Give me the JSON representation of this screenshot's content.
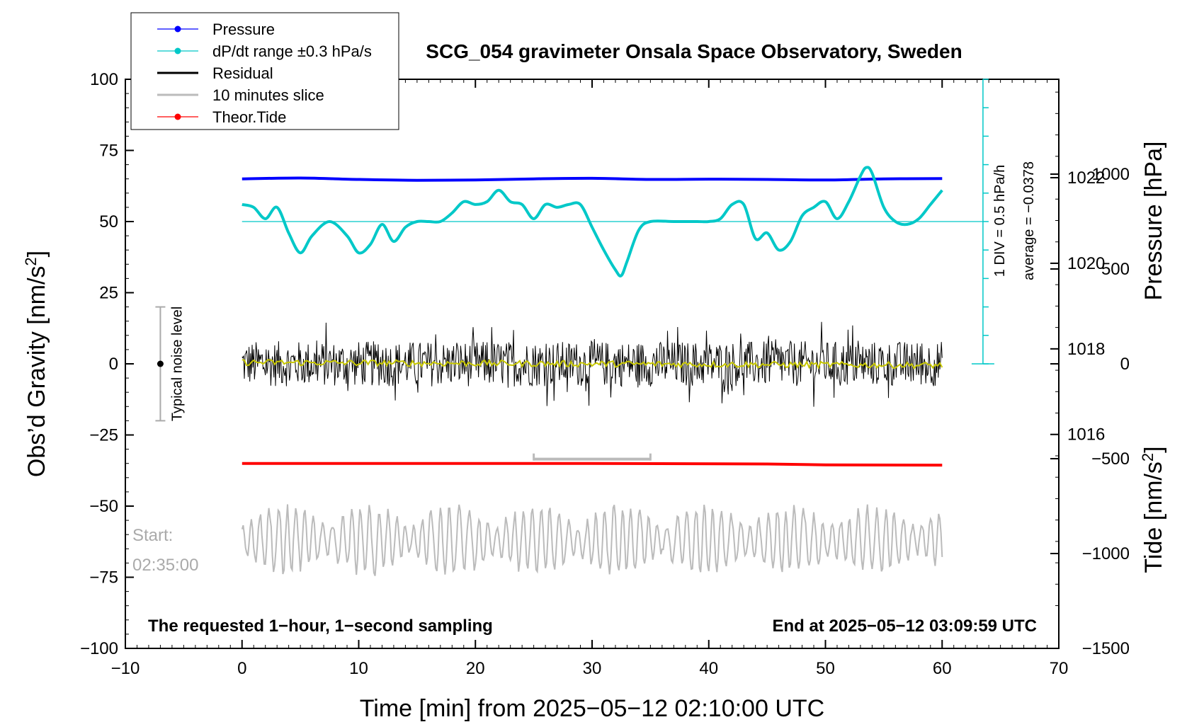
{
  "chart_data": {
    "type": "line",
    "title": "SCG_054 gravimeter Onsala Space Observatory, Sweden",
    "xlabel": "Time [min] from 2025−05−12 02:10:00 UTC",
    "ylabel_left_base": "Obs’d Gravity [nm/s",
    "ylabel_left_sup": "2",
    "ylabel_left_end": "]",
    "ylabel_pressure": "Pressure [hPa]",
    "ylabel_tide_base": "Tide [nm/s",
    "ylabel_tide_sup": "2",
    "ylabel_tide_end": "]",
    "xlim": [
      -10,
      70
    ],
    "ylim": [
      -100,
      100
    ],
    "x_ticks": [
      "−10",
      "0",
      "10",
      "20",
      "30",
      "40",
      "50",
      "60",
      "70"
    ],
    "y_ticks": [
      "−100",
      "−75",
      "−50",
      "−25",
      "0",
      "25",
      "50",
      "75",
      "100"
    ],
    "pressure_ticks": [
      "1016",
      "1018",
      "1020",
      "1022"
    ],
    "pressure_range": [
      1011,
      1024.3
    ],
    "tide_ticks": [
      "1000",
      "500",
      "0",
      "−500",
      "−1000",
      "−1500"
    ],
    "tide_range": [
      -1500,
      1500
    ],
    "legend": [
      {
        "label": "Pressure",
        "color": "#0000ff",
        "marker": true
      },
      {
        "label": "dP/dt range ±0.3 hPa/s",
        "color": "#00c8c8",
        "marker": true
      },
      {
        "label": "Residual",
        "color": "#000000",
        "marker": false
      },
      {
        "label": "10 minutes slice",
        "color": "#bbbbbb",
        "marker": false
      },
      {
        "label": "Theor.Tide",
        "color": "#ff0000",
        "marker": true
      }
    ],
    "annotations": {
      "noise_label": "Typical noise level",
      "noise_range": [
        -20,
        20
      ],
      "noise_x": -7,
      "div_note": "1 DIV = 0.5 hPa/h",
      "average_note": "average = −0.0378",
      "bottom_left": "The requested 1−hour, 1−second sampling",
      "bottom_right": "End at 2025−05−12 03:09:59 UTC",
      "start_label": "Start:",
      "start_time": "02:35:00",
      "slice_range": [
        25,
        35
      ],
      "slice_y": -33.5
    },
    "series": [
      {
        "name": "Pressure",
        "color": "#0000ff",
        "x": [
          0,
          5,
          10,
          15,
          20,
          25,
          30,
          35,
          40,
          45,
          50,
          55,
          60
        ],
        "values": [
          65,
          65.3,
          64.8,
          64.5,
          64.6,
          65,
          65.2,
          64.8,
          64.9,
          64.8,
          64.6,
          65,
          65.1
        ]
      },
      {
        "name": "dP/dt range ±0.3 hPa/s",
        "color": "#00c8c8",
        "x": [
          0,
          1,
          2,
          3,
          4,
          5,
          6,
          7.5,
          9,
          10,
          11,
          12,
          13,
          14,
          15,
          16,
          17,
          18,
          19,
          20,
          21,
          22,
          23,
          24,
          25,
          26,
          27,
          28,
          29,
          30,
          31,
          32,
          32.5,
          33,
          34,
          35,
          37,
          39,
          40,
          41,
          42,
          43,
          44,
          45,
          46,
          47,
          48,
          49,
          50,
          51,
          52,
          53,
          53.5,
          54,
          55,
          56,
          57,
          58,
          59,
          60
        ],
        "values": [
          56,
          55,
          51,
          55,
          46,
          39,
          45,
          50,
          45,
          39,
          42,
          49,
          43,
          48,
          50,
          50,
          50,
          53,
          57,
          56,
          57,
          61,
          57,
          56,
          51,
          56,
          55,
          56,
          56,
          48,
          40,
          33,
          31,
          36,
          47,
          50,
          50,
          50,
          50,
          51,
          56,
          56,
          44,
          46,
          40,
          43,
          52,
          55,
          57,
          51,
          57,
          66,
          69,
          67,
          55,
          50,
          49,
          51,
          56,
          61
        ]
      },
      {
        "name": "Residual",
        "color": "#000000",
        "x": [
          0,
          60
        ],
        "values": [
          0,
          0
        ],
        "amplitude": 8
      },
      {
        "name": "Residual smooth",
        "color": "#c8c800",
        "x": [
          0,
          60
        ],
        "values": [
          0.5,
          -0.5
        ]
      },
      {
        "name": "Theor.Tide",
        "color": "#ff0000",
        "x": [
          0,
          30,
          45,
          50,
          60
        ],
        "values": [
          -35,
          -35,
          -35.2,
          -35.5,
          -35.6
        ]
      },
      {
        "name": "10 minutes slice",
        "color": "#bbbbbb",
        "x": [
          0,
          60
        ],
        "values": [
          -62,
          -62
        ],
        "amplitude": 10
      }
    ]
  }
}
